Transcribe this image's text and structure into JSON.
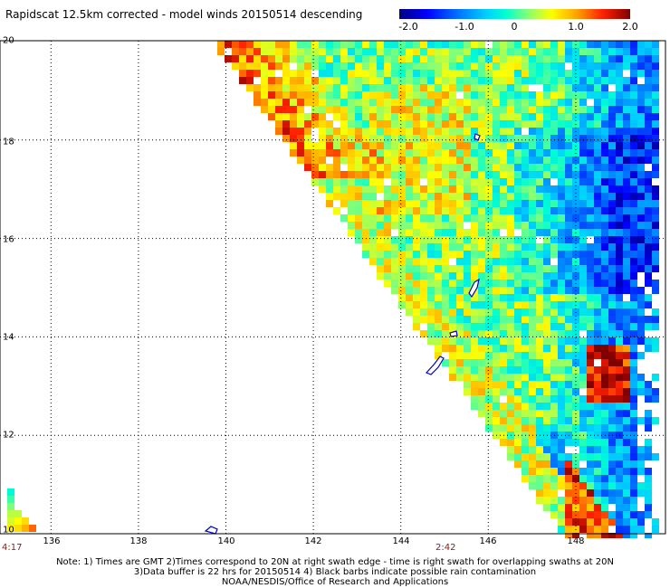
{
  "title": "Rapidscat 12.5km corrected - model winds 20150514 descending",
  "colorbar": {
    "labels": [
      "-2.0",
      "-1.0",
      "0",
      "1.0",
      "2.0"
    ],
    "range": [
      -2.0,
      2.0
    ]
  },
  "map": {
    "lon_range": [
      135,
      150
    ],
    "lat_range": [
      10,
      20
    ],
    "lon_ticks": [
      "136",
      "138",
      "140",
      "142",
      "144",
      "146",
      "148"
    ],
    "lat_ticks": [
      "20",
      "18",
      "16",
      "14",
      "12",
      "10"
    ],
    "grid": true,
    "coastline_color": "#0000cc"
  },
  "times": {
    "left": "4:17",
    "middle": "2:42"
  },
  "notes": {
    "line1": "Note: 1) Times are GMT 2)Times correspond to 20N at right swath edge - time is right swath for overlapping swaths at 20N",
    "line2": "3)Data buffer is 22 hrs for 20150514 4) Black barbs indicate possible rain contamination",
    "line3": "NOAA/NESDIS/Office of Research and Applications"
  }
}
